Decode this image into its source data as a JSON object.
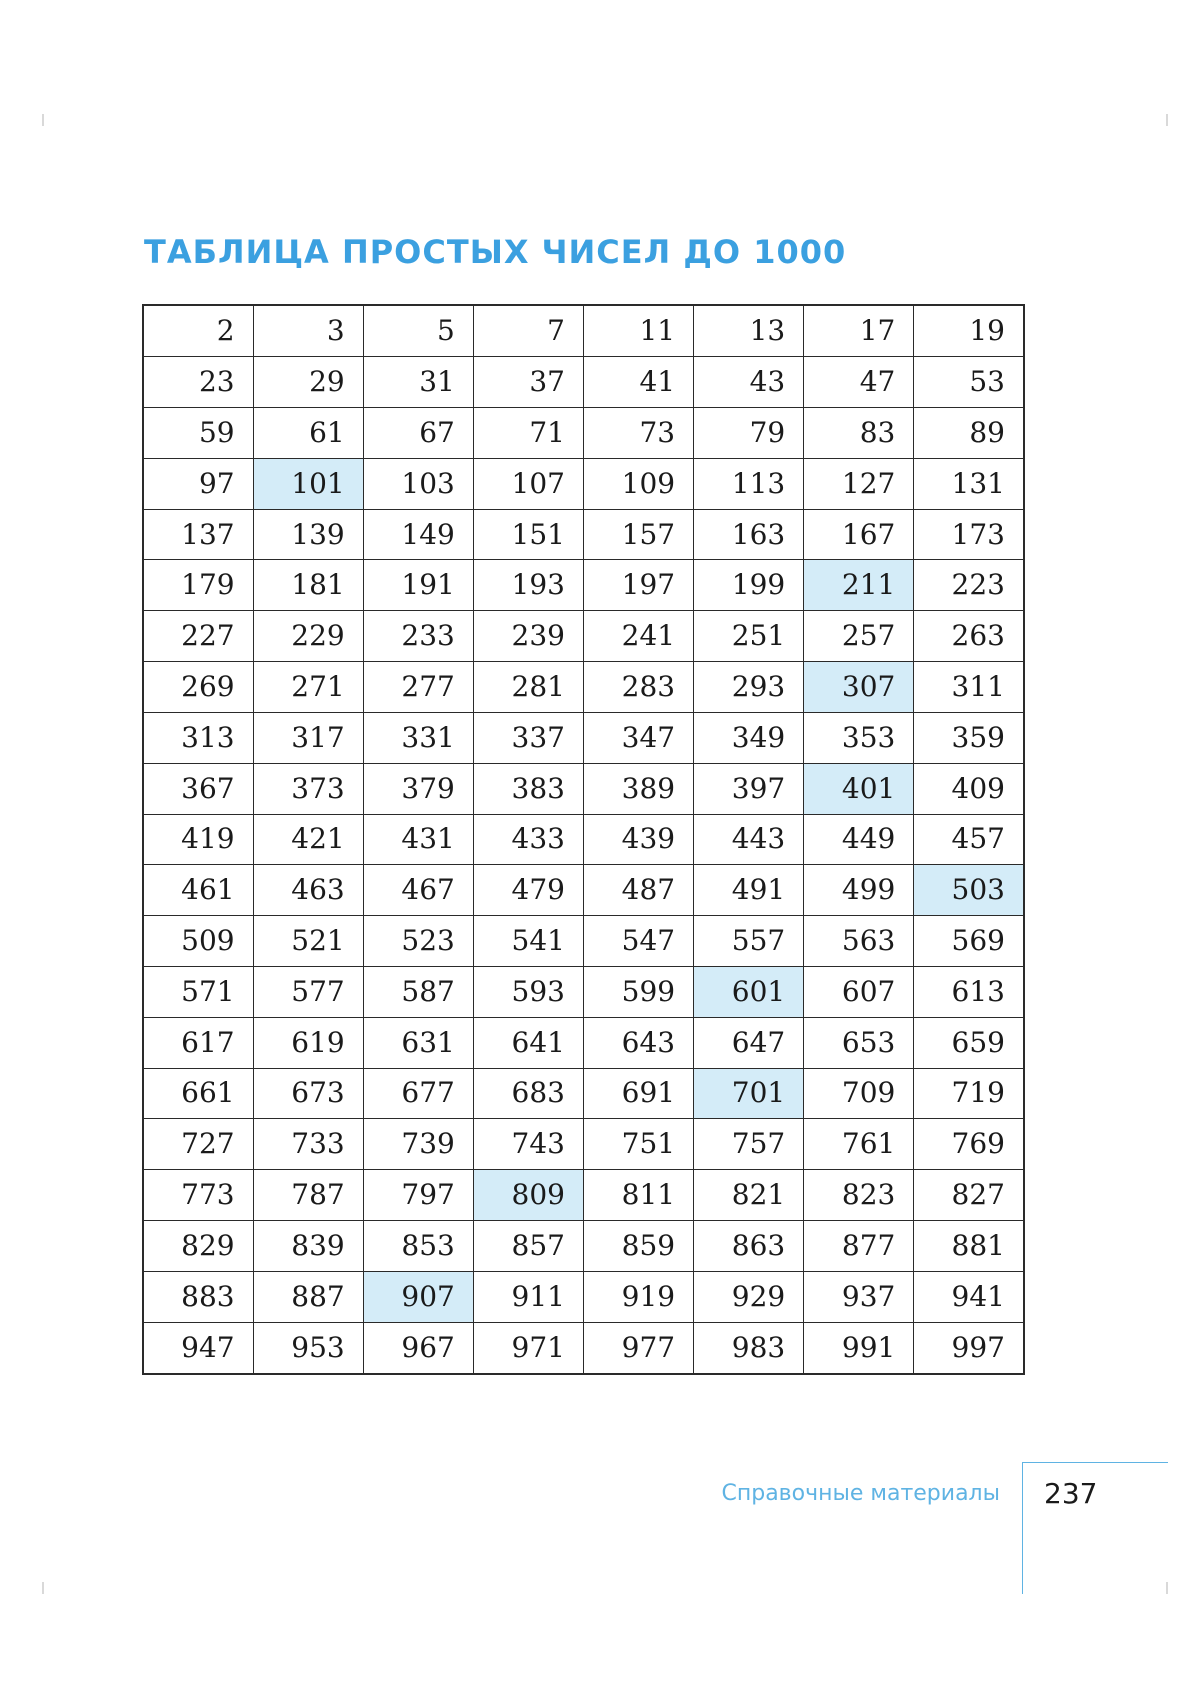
{
  "title": "ТАБЛИЦА ПРОСТЫХ ЧИСЕЛ ДО 1000",
  "primes_table": {
    "rows": [
      [
        "2",
        "3",
        "5",
        "7",
        "11",
        "13",
        "17",
        "19"
      ],
      [
        "23",
        "29",
        "31",
        "37",
        "41",
        "43",
        "47",
        "53"
      ],
      [
        "59",
        "61",
        "67",
        "71",
        "73",
        "79",
        "83",
        "89"
      ],
      [
        "97",
        "101",
        "103",
        "107",
        "109",
        "113",
        "127",
        "131"
      ],
      [
        "137",
        "139",
        "149",
        "151",
        "157",
        "163",
        "167",
        "173"
      ],
      [
        "179",
        "181",
        "191",
        "193",
        "197",
        "199",
        "211",
        "223"
      ],
      [
        "227",
        "229",
        "233",
        "239",
        "241",
        "251",
        "257",
        "263"
      ],
      [
        "269",
        "271",
        "277",
        "281",
        "283",
        "293",
        "307",
        "311"
      ],
      [
        "313",
        "317",
        "331",
        "337",
        "347",
        "349",
        "353",
        "359"
      ],
      [
        "367",
        "373",
        "379",
        "383",
        "389",
        "397",
        "401",
        "409"
      ],
      [
        "419",
        "421",
        "431",
        "433",
        "439",
        "443",
        "449",
        "457"
      ],
      [
        "461",
        "463",
        "467",
        "479",
        "487",
        "491",
        "499",
        "503"
      ],
      [
        "509",
        "521",
        "523",
        "541",
        "547",
        "557",
        "563",
        "569"
      ],
      [
        "571",
        "577",
        "587",
        "593",
        "599",
        "601",
        "607",
        "613"
      ],
      [
        "617",
        "619",
        "631",
        "641",
        "643",
        "647",
        "653",
        "659"
      ],
      [
        "661",
        "673",
        "677",
        "683",
        "691",
        "701",
        "709",
        "719"
      ],
      [
        "727",
        "733",
        "739",
        "743",
        "751",
        "757",
        "761",
        "769"
      ],
      [
        "773",
        "787",
        "797",
        "809",
        "811",
        "821",
        "823",
        "827"
      ],
      [
        "829",
        "839",
        "853",
        "857",
        "859",
        "863",
        "877",
        "881"
      ],
      [
        "883",
        "887",
        "907",
        "911",
        "919",
        "929",
        "937",
        "941"
      ],
      [
        "947",
        "953",
        "967",
        "971",
        "977",
        "983",
        "991",
        "997"
      ]
    ],
    "highlighted_values": [
      "101",
      "211",
      "307",
      "401",
      "503",
      "601",
      "701",
      "809",
      "907"
    ],
    "highlight_color": "#d4ecf8"
  },
  "footer": {
    "section": "Справочные материалы",
    "page_number": "237"
  },
  "colors": {
    "title": "#3ba0e0",
    "footer_accent": "#5fb3e3",
    "text": "#1a1a1a",
    "grid": "#2a2a2a"
  }
}
